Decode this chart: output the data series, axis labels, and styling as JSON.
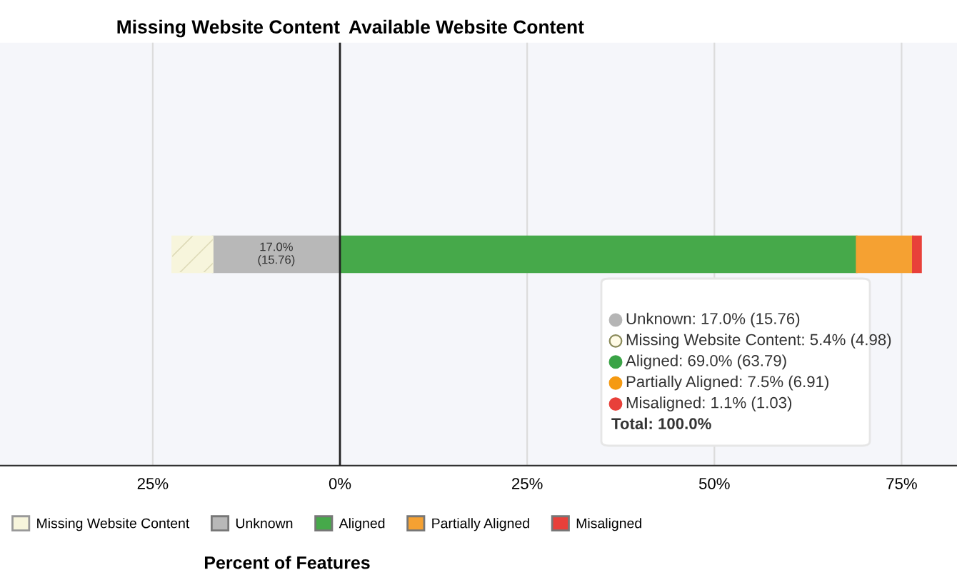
{
  "chart_data": {
    "type": "bar",
    "orientation": "horizontal",
    "categories": [
      null
    ],
    "series": [
      {
        "name": "Unknown",
        "color": "#b8b8b8",
        "values": [
          17.0
        ],
        "base": [
          -17.0
        ],
        "value_labels": [
          "17.0%\n(15.76)"
        ]
      },
      {
        "name": "Missing Website Content",
        "color": "#f7f5dc",
        "values": [
          5.4
        ],
        "base": [
          -22.4
        ]
      },
      {
        "name": "Aligned",
        "color": "#46a94a",
        "values": [
          69.0
        ],
        "base": [
          0
        ]
      },
      {
        "name": "Partially Aligned",
        "color": "#f5a132",
        "values": [
          7.5
        ],
        "base": [
          69.0
        ]
      },
      {
        "name": "Misaligned",
        "color": "#e8403a",
        "values": [
          1.1
        ],
        "base": [
          76.5
        ]
      }
    ],
    "xlim": [
      -45.4,
      82.4
    ],
    "xticks": [
      {
        "value": -25,
        "label": "25%"
      },
      {
        "value": 0,
        "label": "0%"
      },
      {
        "value": 25,
        "label": "25%"
      },
      {
        "value": 50,
        "label": "50%"
      },
      {
        "value": 75,
        "label": "75%"
      }
    ],
    "xlabel": "Percent of Features",
    "grid": "x",
    "legend": "bottom",
    "ref_lines": [
      {
        "axis": "x",
        "value": 0,
        "color": "#222222"
      }
    ],
    "annotations": [
      "Missing Website Content",
      "Available Website Content",
      "Unknown: 17.0% (15.76)",
      "Missing Website Content: 5.4% (4.98)",
      "Aligned: 69.0% (63.79)",
      "Partially Aligned: 7.5% (6.91)",
      "Misaligned: 1.1% (1.03)",
      "Total: 100.0%"
    ]
  }
}
